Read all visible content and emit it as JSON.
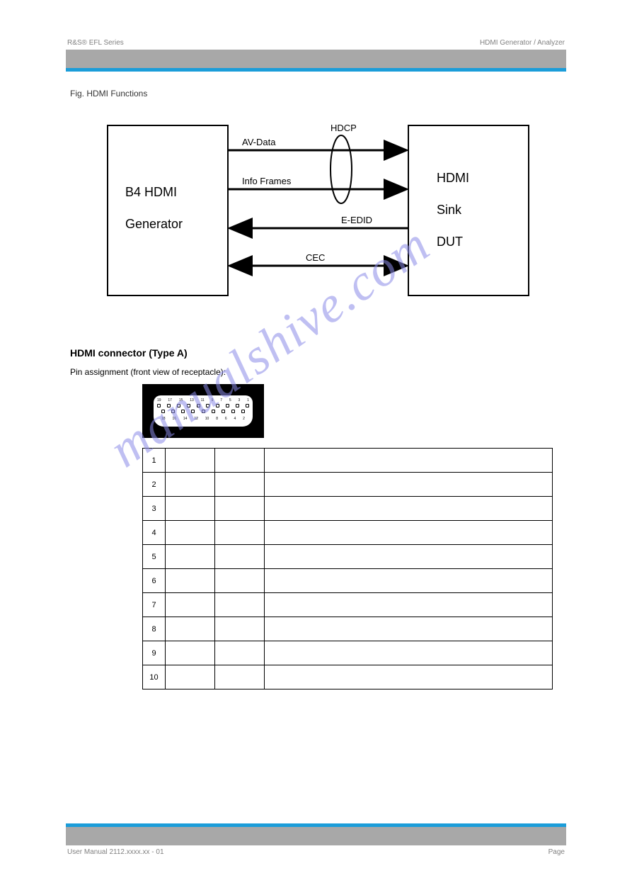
{
  "header": {
    "left": "R&S® EFL Series",
    "right": "HDMI Generator / Analyzer"
  },
  "footer": {
    "left": "User Manual 2112.xxxx.xx - 01",
    "right": "Page"
  },
  "figure": {
    "title": "Fig. HDMI Functions",
    "left_box": {
      "line1": "B4 HDMI",
      "line2": "Generator"
    },
    "right_box": {
      "line1": "HDMI",
      "line2": "Sink",
      "line3": "DUT"
    },
    "arrows": {
      "av": "AV-Data",
      "info": "Info Frames",
      "hdcp": "HDCP",
      "eedid": "E-EDID",
      "cec": "CEC"
    },
    "box_stroke": "#000000",
    "arrow_stroke": "#000000",
    "bg": "#ffffff"
  },
  "connector": {
    "heading": "HDMI connector (Type A)",
    "subtitle": "Pin assignment (front view of receptacle):",
    "pins_top": [
      "19",
      "17",
      "15",
      "13",
      "11",
      "9",
      "7",
      "5",
      "3",
      "1"
    ],
    "pins_bot": [
      "18",
      "16",
      "14",
      "12",
      "10",
      "8",
      "6",
      "4",
      "2"
    ]
  },
  "pin_table": {
    "rows": [
      {
        "pin": "1",
        "b": "",
        "c": "",
        "d": ""
      },
      {
        "pin": "2",
        "b": "",
        "c": "",
        "d": ""
      },
      {
        "pin": "3",
        "b": "",
        "c": "",
        "d": ""
      },
      {
        "pin": "4",
        "b": "",
        "c": "",
        "d": ""
      },
      {
        "pin": "5",
        "b": "",
        "c": "",
        "d": ""
      },
      {
        "pin": "6",
        "b": "",
        "c": "",
        "d": ""
      },
      {
        "pin": "7",
        "b": "",
        "c": "",
        "d": ""
      },
      {
        "pin": "8",
        "b": "",
        "c": "",
        "d": ""
      },
      {
        "pin": "9",
        "b": "",
        "c": "",
        "d": ""
      },
      {
        "pin": "10",
        "b": "",
        "c": "",
        "d": ""
      }
    ]
  },
  "watermark": "manualshive.com",
  "colors": {
    "gray": "#a8a8a8",
    "blue": "#1b9dd9",
    "wm": "#8b8be8"
  }
}
